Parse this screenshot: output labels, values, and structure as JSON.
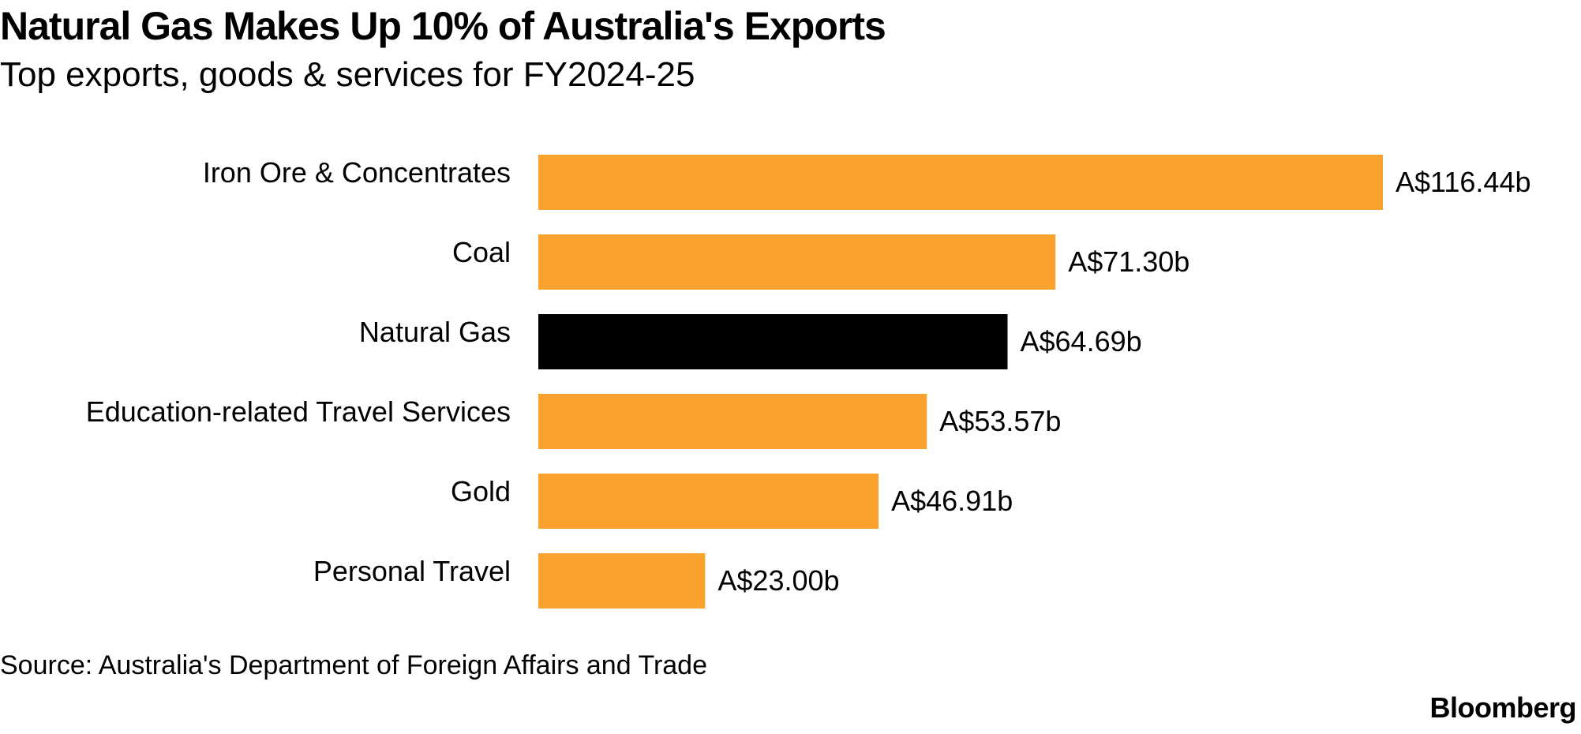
{
  "header": {
    "title": "Natural Gas Makes Up 10% of Australia's Exports",
    "subtitle": "Top exports, goods & services for FY2024-25"
  },
  "chart_data": {
    "type": "bar",
    "orientation": "horizontal",
    "title": "Natural Gas Makes Up 10% of Australia's Exports",
    "subtitle": "Top exports, goods & services for FY2024-25",
    "categories": [
      "Iron Ore & Concentrates",
      "Coal",
      "Natural Gas",
      "Education-related Travel Services",
      "Gold",
      "Personal Travel"
    ],
    "values": [
      116.44,
      71.3,
      64.69,
      53.57,
      46.91,
      23.0
    ],
    "value_labels": [
      "A$116.44b",
      "A$71.30b",
      "A$64.69b",
      "A$53.57b",
      "A$46.91b",
      "A$23.00b"
    ],
    "unit": "A$ billions",
    "highlight_index": 2,
    "colors": {
      "default": "#FBA12D",
      "highlight": "#000000"
    },
    "grid": false,
    "legend": "none"
  },
  "footer": {
    "source": "Source: Australia's Department of Foreign Affairs and Trade",
    "brand": "Bloomberg"
  }
}
